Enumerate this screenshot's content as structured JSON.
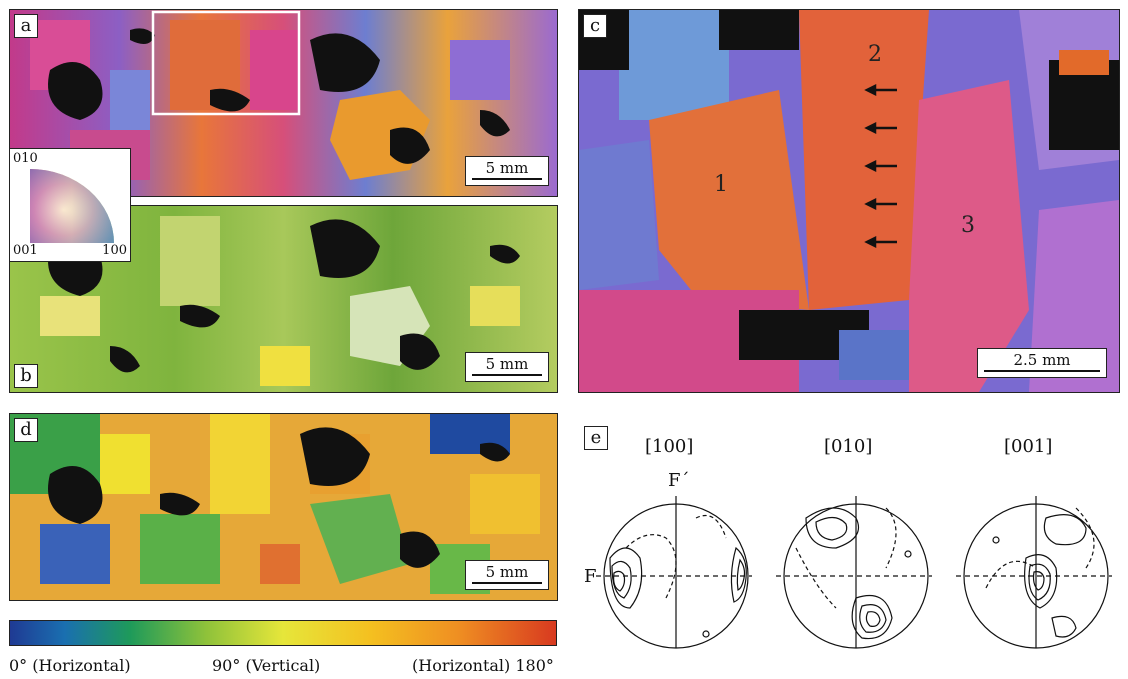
{
  "panels": {
    "a": {
      "label": "a",
      "scale": "5 mm"
    },
    "b": {
      "label": "b",
      "scale": "5 mm"
    },
    "c": {
      "label": "c",
      "scale": "2.5 mm",
      "grains": [
        "1",
        "2",
        "3"
      ]
    },
    "d": {
      "label": "d",
      "scale": "5 mm"
    },
    "e": {
      "label": "e",
      "titles": [
        "[100]",
        "[010]",
        "[001]"
      ],
      "axis_top": "F´",
      "axis_left": "F"
    }
  },
  "ipf_legend": {
    "top": "010",
    "bottom_left": "001",
    "bottom_right": "100"
  },
  "colorbar": {
    "left": "0° (Horizontal)",
    "middle": "90° (Vertical)",
    "right": "(Horizontal) 180°",
    "colors": [
      "#1f3a93",
      "#1e9a5a",
      "#e6e63a",
      "#ef8f22",
      "#d83a20"
    ]
  }
}
